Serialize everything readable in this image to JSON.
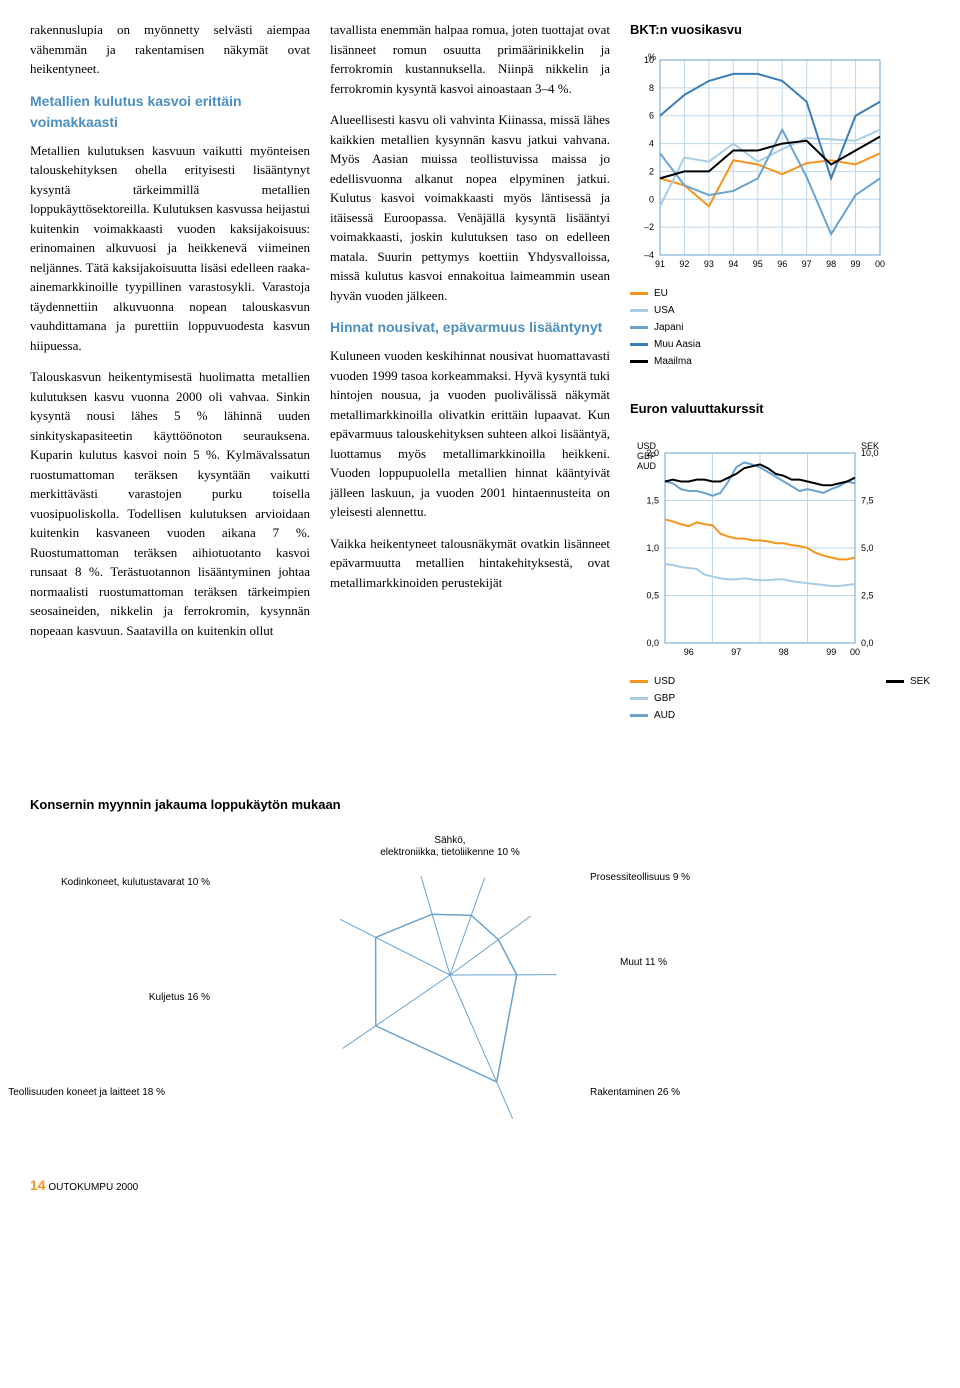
{
  "col1": {
    "p1": "rakennuslupia on myönnetty selvästi aiempaa vähemmän ja rakentamisen näkymät ovat heikentyneet.",
    "h1": "Metallien kulutus kasvoi erittäin voimakkaasti",
    "p2": "Metallien kulutuksen kasvuun vaikutti myönteisen talouskehityksen ohella erityisesti lisääntynyt kysyntä tärkeimmillä metallien loppukäyttösektoreilla. Kulutuksen kasvussa heijastui kuitenkin voimakkaasti vuoden kaksijakoisuus: erinomainen alkuvuosi ja heikkenevä viimeinen neljännes. Tätä kaksijakoisuutta lisäsi edelleen raaka-ainemarkkinoille tyypillinen varastosykli. Varastoja täydennettiin alkuvuonna nopean talouskasvun vauhdittamana ja purettiin loppuvuodesta kasvun hiipuessa.",
    "p3": "Talouskasvun heikentymisestä huolimatta metallien kulutuksen kasvu vuonna 2000 oli vahvaa. Sinkin kysyntä nousi lähes 5 % lähinnä uuden sinkityskapasiteetin käyttöönoton seurauksena. Kuparin kulutus kasvoi noin 5 %. Kylmävalssatun ruostumattoman teräksen kysyntään vaikutti merkittävästi varastojen purku toisella vuosipuoliskolla. Todellisen kulutuksen arvioidaan kuitenkin kasvaneen vuoden aikana 7 %. Ruostumattoman teräksen aihiotuotanto kasvoi runsaat 8 %. Terästuotannon lisääntyminen johtaa normaalisti ruostumattoman teräksen tärkeimpien seosaineiden, nikkelin ja ferrokromin, kysynnän nopeaan kasvuun. Saatavilla on kuitenkin ollut"
  },
  "col2": {
    "p1": "tavallista enemmän halpaa romua, joten tuottajat ovat lisänneet romun osuutta primäärinikkelin ja ferrokromin kustannuksella. Niinpä nikkelin ja ferrokromin kysyntä kasvoi ainoastaan 3–4 %.",
    "p2": "Alueellisesti kasvu oli vahvinta Kiinassa, missä lähes kaikkien metallien kysynnän kasvu jatkui vahvana. Myös Aasian muissa teollistuvissa maissa jo edellisvuonna alkanut nopea elpyminen jatkui. Kulutus kasvoi voimakkaasti myös läntisessä ja itäisessä Euroopassa. Venäjällä kysyntä lisääntyi voimakkaasti, joskin kulutuksen taso on edelleen matala. Suurin pettymys koettiin Yhdysvalloissa, missä kulutus kasvoi ennakoitua laimeammin usean hyvän vuoden jälkeen.",
    "h1": "Hinnat nousivat, epävarmuus lisääntynyt",
    "p3": "Kuluneen vuoden keskihinnat nousivat huomattavasti vuoden 1999 tasoa korkeammaksi. Hyvä kysyntä tuki hintojen nousua, ja vuoden puolivälissä näkymät metallimarkkinoilla olivatkin erittäin lupaavat. Kun epävarmuus talouskehityksen suhteen alkoi lisääntyä, luottamus myös metallimarkkinoilla heikkeni. Vuoden loppupuolella metallien hinnat kääntyivät jälleen laskuun, ja vuoden 2001 hintaennusteita on yleisesti alennettu.",
    "p4": "Vaikka heikentyneet talousnäkymät ovatkin lisänneet epävarmuutta metallien hintakehityksestä, ovat metallimarkkinoiden perustekijät"
  },
  "chart1": {
    "title": "BKT:n vuosikasvu",
    "ylabel": "%",
    "ymin": -4,
    "ymax": 10,
    "ystep": 2,
    "xlabels": [
      "91",
      "92",
      "93",
      "94",
      "95",
      "96",
      "97",
      "98",
      "99",
      "00"
    ],
    "series": {
      "EU": {
        "label": "EU",
        "color": "#f7941e",
        "values": [
          1.5,
          1.0,
          -0.5,
          2.8,
          2.5,
          1.8,
          2.6,
          2.8,
          2.5,
          3.3
        ]
      },
      "USA": {
        "label": "USA",
        "color": "#a8cde4",
        "values": [
          -0.5,
          3.0,
          2.7,
          4.0,
          2.7,
          3.6,
          4.4,
          4.3,
          4.2,
          5.0
        ]
      },
      "Japani": {
        "label": "Japani",
        "color": "#6ba3d0",
        "values": [
          3.3,
          1.0,
          0.3,
          0.6,
          1.5,
          5.0,
          1.6,
          -2.5,
          0.3,
          1.5
        ]
      },
      "MuuAasia": {
        "label": "Muu Aasia",
        "color": "#3b7db5",
        "values": [
          6.0,
          7.5,
          8.5,
          9.0,
          9.0,
          8.5,
          7.0,
          1.5,
          6.0,
          7.0
        ]
      },
      "Maailma": {
        "label": "Maailma",
        "color": "#000000",
        "values": [
          1.5,
          2.0,
          2.0,
          3.5,
          3.5,
          4.0,
          4.2,
          2.5,
          3.5,
          4.5
        ]
      }
    }
  },
  "chart2": {
    "title": "Euron valuuttakurssit",
    "left_label": "USD\nGBP\nAUD",
    "right_label": "SEK",
    "left_min": 0,
    "left_max": 2.0,
    "left_step": 0.5,
    "right_min": 0,
    "right_max": 10.0,
    "right_step": 2.5,
    "xlabels": [
      "96",
      "97",
      "98",
      "99",
      "00"
    ],
    "series": {
      "USD": {
        "label": "USD",
        "color": "#f7941e",
        "axis": "left",
        "values": [
          1.3,
          1.28,
          1.25,
          1.23,
          1.27,
          1.25,
          1.24,
          1.15,
          1.12,
          1.1,
          1.1,
          1.08,
          1.08,
          1.07,
          1.05,
          1.05,
          1.03,
          1.02,
          1.0,
          0.95,
          0.92,
          0.9,
          0.88,
          0.88,
          0.9
        ]
      },
      "GBP": {
        "label": "GBP",
        "color": "#a8cde4",
        "axis": "left",
        "values": [
          0.83,
          0.82,
          0.8,
          0.79,
          0.78,
          0.72,
          0.7,
          0.68,
          0.67,
          0.67,
          0.68,
          0.67,
          0.66,
          0.66,
          0.67,
          0.67,
          0.65,
          0.64,
          0.63,
          0.62,
          0.61,
          0.6,
          0.6,
          0.61,
          0.62
        ]
      },
      "AUD": {
        "label": "AUD",
        "color": "#6ba3d0",
        "axis": "left",
        "values": [
          1.7,
          1.68,
          1.62,
          1.6,
          1.6,
          1.58,
          1.55,
          1.58,
          1.7,
          1.85,
          1.9,
          1.88,
          1.85,
          1.8,
          1.75,
          1.7,
          1.65,
          1.6,
          1.62,
          1.6,
          1.58,
          1.62,
          1.65,
          1.7,
          1.68
        ]
      },
      "SEK": {
        "label": "SEK",
        "color": "#000000",
        "axis": "right",
        "values": [
          8.5,
          8.6,
          8.5,
          8.5,
          8.6,
          8.6,
          8.5,
          8.5,
          8.7,
          8.9,
          9.2,
          9.3,
          9.4,
          9.2,
          8.9,
          8.8,
          8.6,
          8.6,
          8.5,
          8.4,
          8.3,
          8.3,
          8.4,
          8.5,
          8.7
        ]
      }
    },
    "legend_left": [
      "USD",
      "GBP",
      "AUD"
    ],
    "legend_right": [
      "SEK"
    ]
  },
  "polar": {
    "title": "Konsernin myynnin jakauma loppukäytön mukaan",
    "segments": [
      {
        "label": "Kodinkoneet, kulutustavarat 10 %",
        "value": 10
      },
      {
        "label": "Sähkö, elektroniikka, tietoliikenne 10 %",
        "value": 10
      },
      {
        "label": "Prosessiteollisuus 9 %",
        "value": 9
      },
      {
        "label": "Muut 11 %",
        "value": 11
      },
      {
        "label": "Rakentaminen 26 %",
        "value": 26
      },
      {
        "label": "Teollisuuden koneet ja laitteet 18 %",
        "value": 18
      },
      {
        "label": "Kuljetus 16 %",
        "value": 16
      }
    ],
    "stroke_color": "#6ba3d0"
  },
  "footer": {
    "page_num": "14",
    "doc_title": "OUTOKUMPU 2000"
  }
}
